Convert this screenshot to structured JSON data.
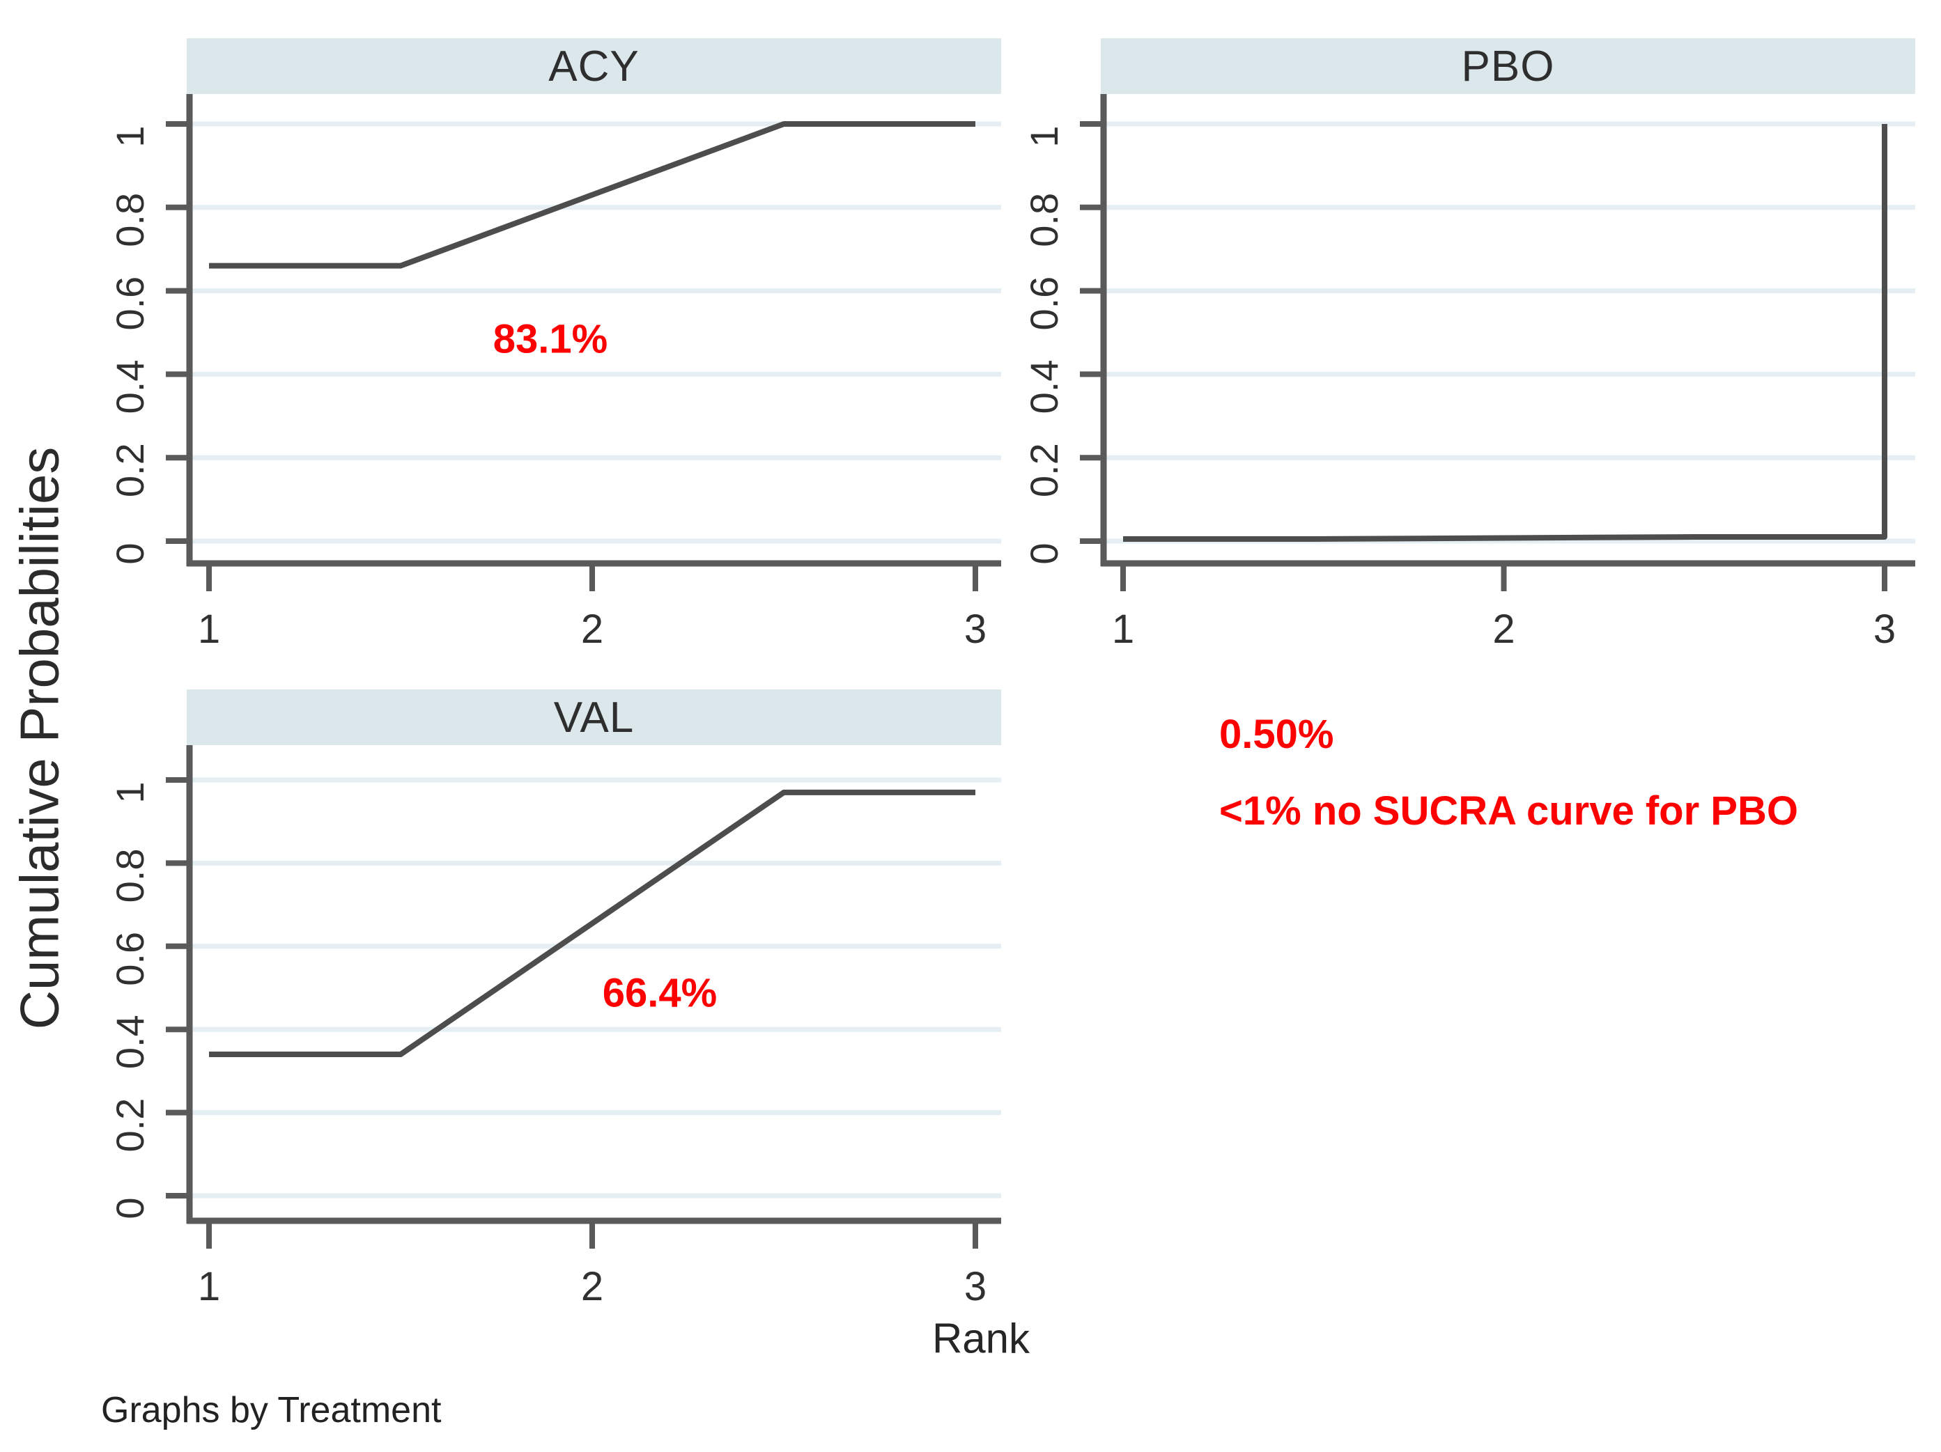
{
  "figure": {
    "x_axis_title": "Rank",
    "y_axis_title": "Cumulative Probabilities",
    "footer_note": "Graphs by Treatment",
    "colors": {
      "panel_header_bg": "#dce7ec",
      "grid": "#e5eff3",
      "axis": "#5a5a5a",
      "curve": "#4d4d4d",
      "tick_text": "#303030",
      "annotation": "#ff0000"
    }
  },
  "chart_data": [
    {
      "type": "line",
      "title": "ACY",
      "x": [
        1,
        1.5,
        2.5,
        3
      ],
      "y": [
        0.66,
        0.66,
        1.0,
        1.0
      ],
      "sucra_label": "83.1%",
      "xlabel": "Rank",
      "ylabel": "Cumulative Probabilities",
      "xticks": [
        1,
        2,
        3
      ],
      "xticklabels": [
        "1",
        "2",
        "3"
      ],
      "yticks": [
        0,
        0.2,
        0.4,
        0.6,
        0.8,
        1
      ],
      "yticklabels": [
        "0",
        "0.2",
        "0.4",
        "0.6",
        "0.8",
        "1"
      ],
      "xlim": [
        1,
        3
      ],
      "ylim": [
        0,
        1
      ],
      "grid": true,
      "legend": "none"
    },
    {
      "type": "line",
      "title": "PBO",
      "x": [
        1,
        1.5,
        2.5,
        3,
        3
      ],
      "y": [
        0.005,
        0.005,
        0.01,
        0.01,
        1.0
      ],
      "sucra_label": "0.50%",
      "note": "<1% no SUCRA curve for PBO",
      "xlabel": "Rank",
      "ylabel": "Cumulative Probabilities",
      "xticks": [
        1,
        2,
        3
      ],
      "xticklabels": [
        "1",
        "2",
        "3"
      ],
      "yticks": [
        0,
        0.2,
        0.4,
        0.6,
        0.8,
        1
      ],
      "yticklabels": [
        "0",
        "0.2",
        "0.4",
        "0.6",
        "0.8",
        "1"
      ],
      "xlim": [
        1,
        3
      ],
      "ylim": [
        0,
        1
      ],
      "grid": true,
      "legend": "none"
    },
    {
      "type": "line",
      "title": "VAL",
      "x": [
        1,
        1.5,
        2.5,
        3
      ],
      "y": [
        0.34,
        0.34,
        0.97,
        0.97
      ],
      "sucra_label": "66.4%",
      "xlabel": "Rank",
      "ylabel": "Cumulative Probabilities",
      "xticks": [
        1,
        2,
        3
      ],
      "xticklabels": [
        "1",
        "2",
        "3"
      ],
      "yticks": [
        0,
        0.2,
        0.4,
        0.6,
        0.8,
        1
      ],
      "yticklabels": [
        "0",
        "0.2",
        "0.4",
        "0.6",
        "0.8",
        "1"
      ],
      "xlim": [
        1,
        3
      ],
      "ylim": [
        0,
        1
      ],
      "grid": true,
      "legend": "none"
    }
  ]
}
